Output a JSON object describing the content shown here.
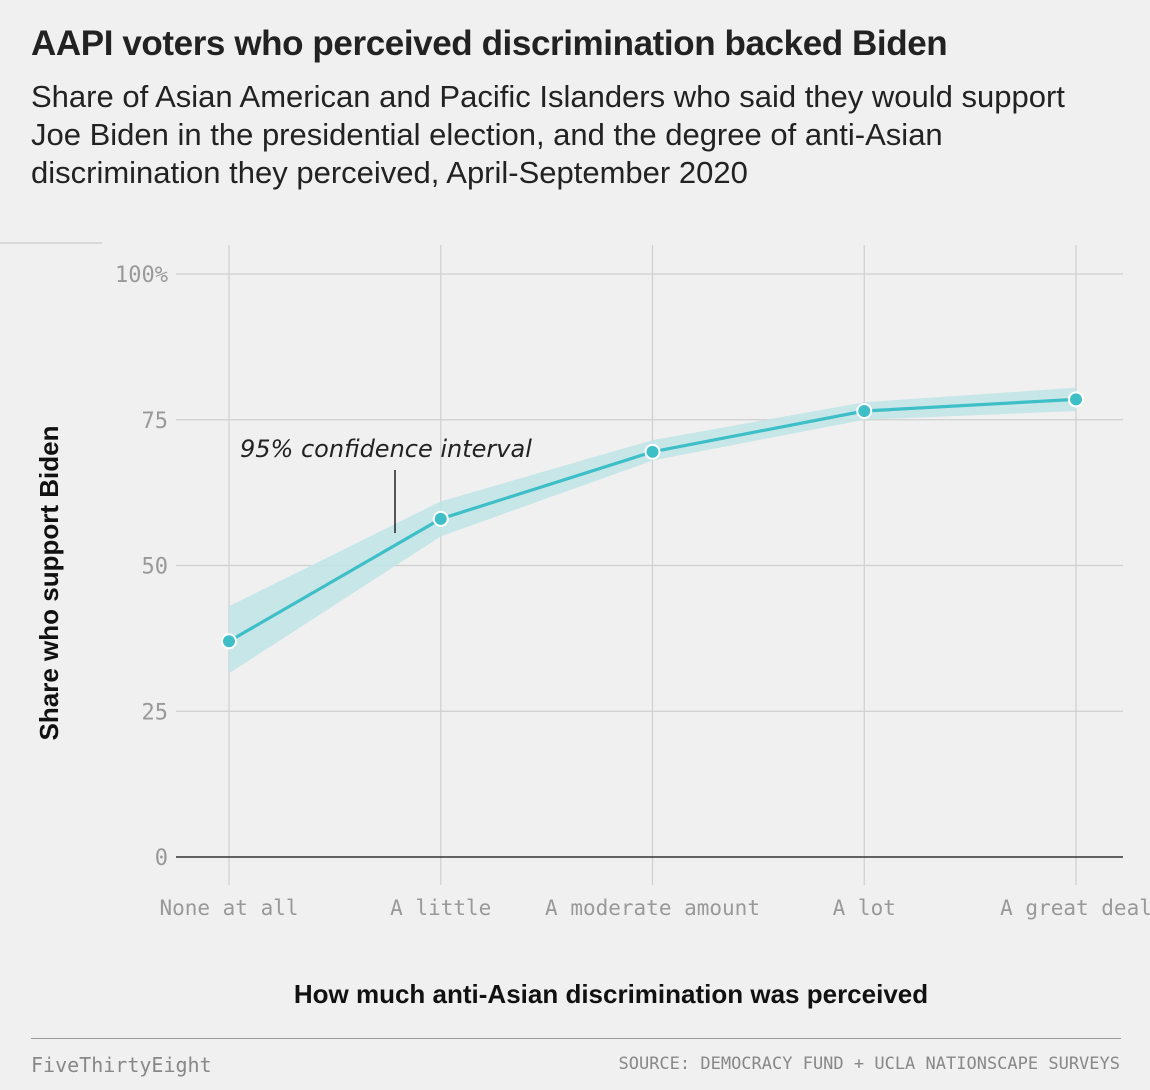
{
  "title": "AAPI voters who perceived discrimination backed Biden",
  "subtitle": "Share of Asian American and Pacific Islanders who said they would support Joe Biden in the presidential election, and the degree of anti-Asian discrimination they perceived, April-September 2020",
  "footer": {
    "brand": "FiveThirtyEight",
    "source": "SOURCE: DEMOCRACY FUND + UCLA NATIONSCAPE SURVEYS"
  },
  "chart_data": {
    "type": "line",
    "title": "AAPI voters who perceived discrimination backed Biden",
    "xlabel": "How much anti-Asian discrimination was perceived",
    "ylabel": "Share who support Biden",
    "categories": [
      "None at all",
      "A little",
      "A moderate amount",
      "A lot",
      "A great deal"
    ],
    "series": [
      {
        "values": [
          37,
          58,
          69.5,
          76.5,
          78.5
        ],
        "ci_lower": [
          31.5,
          55,
          68,
          75,
          76.5
        ],
        "ci_upper": [
          43,
          61,
          71.5,
          78,
          80.5
        ]
      }
    ],
    "ylim": [
      0,
      100
    ],
    "yticks": [
      0,
      25,
      50,
      75,
      100
    ],
    "ytick_labels": [
      "0",
      "25",
      "50",
      "75",
      "100%"
    ],
    "grid": true,
    "annotation": {
      "text": "95% confidence interval",
      "x_between": [
        0,
        1
      ]
    },
    "colors": {
      "line": "#3ebfc8",
      "band": "#bfe4e6",
      "point_stroke": "#ffffff"
    }
  }
}
